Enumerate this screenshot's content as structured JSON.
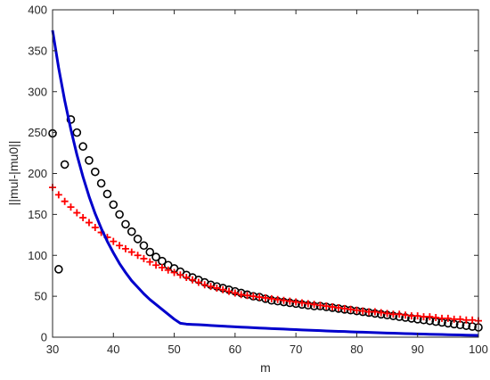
{
  "chart_data": {
    "type": "line",
    "title": "",
    "xlabel": "m",
    "ylabel": "||mul-|mu0||",
    "xlim": [
      30,
      100
    ],
    "ylim": [
      0,
      400
    ],
    "xticks": [
      30,
      40,
      50,
      60,
      70,
      80,
      90,
      100
    ],
    "yticks": [
      0,
      50,
      100,
      150,
      200,
      250,
      300,
      350,
      400
    ],
    "grid": false,
    "legend": "none",
    "x": [
      30,
      31,
      32,
      33,
      34,
      35,
      36,
      37,
      38,
      39,
      40,
      41,
      42,
      43,
      44,
      45,
      46,
      47,
      48,
      49,
      50,
      51,
      52,
      53,
      54,
      55,
      56,
      57,
      58,
      59,
      60,
      61,
      62,
      63,
      64,
      65,
      66,
      67,
      68,
      69,
      70,
      71,
      72,
      73,
      74,
      75,
      76,
      77,
      78,
      79,
      80,
      81,
      82,
      83,
      84,
      85,
      86,
      87,
      88,
      89,
      90,
      91,
      92,
      93,
      94,
      95,
      96,
      97,
      98,
      99,
      100
    ],
    "series": [
      {
        "marker": "circle",
        "line": "none",
        "color": "#000000",
        "values": [
          249,
          83,
          211,
          266,
          250,
          233,
          216,
          202,
          188,
          175,
          162,
          150,
          138,
          129,
          120,
          112,
          104,
          98,
          93,
          88,
          84,
          80,
          76,
          73,
          70,
          67,
          64,
          62,
          60,
          58,
          56,
          54,
          52,
          50,
          49,
          47,
          45,
          44,
          43,
          42,
          41,
          40,
          39,
          38,
          38,
          37,
          36,
          35,
          34,
          33,
          32,
          31,
          30,
          29,
          28,
          27,
          26,
          25,
          24,
          23,
          22,
          21,
          20,
          19,
          18,
          17,
          16,
          15,
          14,
          13,
          12
        ]
      },
      {
        "marker": "plus",
        "line": "none",
        "color": "#ff0000",
        "values": [
          183,
          174,
          166,
          159,
          152,
          146,
          140,
          134,
          128,
          122,
          117,
          112,
          108,
          104,
          100,
          96,
          92,
          88,
          85,
          82,
          79,
          76,
          73,
          70,
          67,
          64,
          62,
          60,
          58,
          56,
          54,
          52,
          51,
          50,
          49,
          48,
          47,
          46,
          45,
          44,
          43,
          42,
          41,
          40,
          39,
          38,
          37,
          36,
          35,
          34,
          33,
          32,
          31,
          31,
          30,
          29,
          28,
          28,
          27,
          26,
          26,
          25,
          25,
          24,
          23,
          23,
          22,
          22,
          21,
          21,
          20
        ]
      },
      {
        "marker": "none",
        "line": "solid",
        "color": "#0000cc",
        "values": [
          375,
          329,
          289,
          254,
          223,
          196,
          172,
          151,
          133,
          117,
          103,
          90,
          79,
          69,
          61,
          53,
          46,
          40,
          34,
          28,
          22,
          17,
          16,
          15.6,
          15.2,
          14.8,
          14.3,
          13.9,
          13.5,
          13.1,
          12.7,
          12.3,
          12,
          11.6,
          11.2,
          10.9,
          10.5,
          10.2,
          9.9,
          9.5,
          9.2,
          8.9,
          8.6,
          8.3,
          8,
          7.7,
          7.4,
          7.1,
          6.9,
          6.6,
          6.3,
          6.1,
          5.8,
          5.6,
          5.3,
          5.1,
          4.9,
          4.7,
          4.4,
          4.2,
          4,
          3.8,
          3.6,
          3.4,
          3.2,
          3,
          2.9,
          2.7,
          2.5,
          2.3,
          2.2
        ]
      }
    ]
  }
}
